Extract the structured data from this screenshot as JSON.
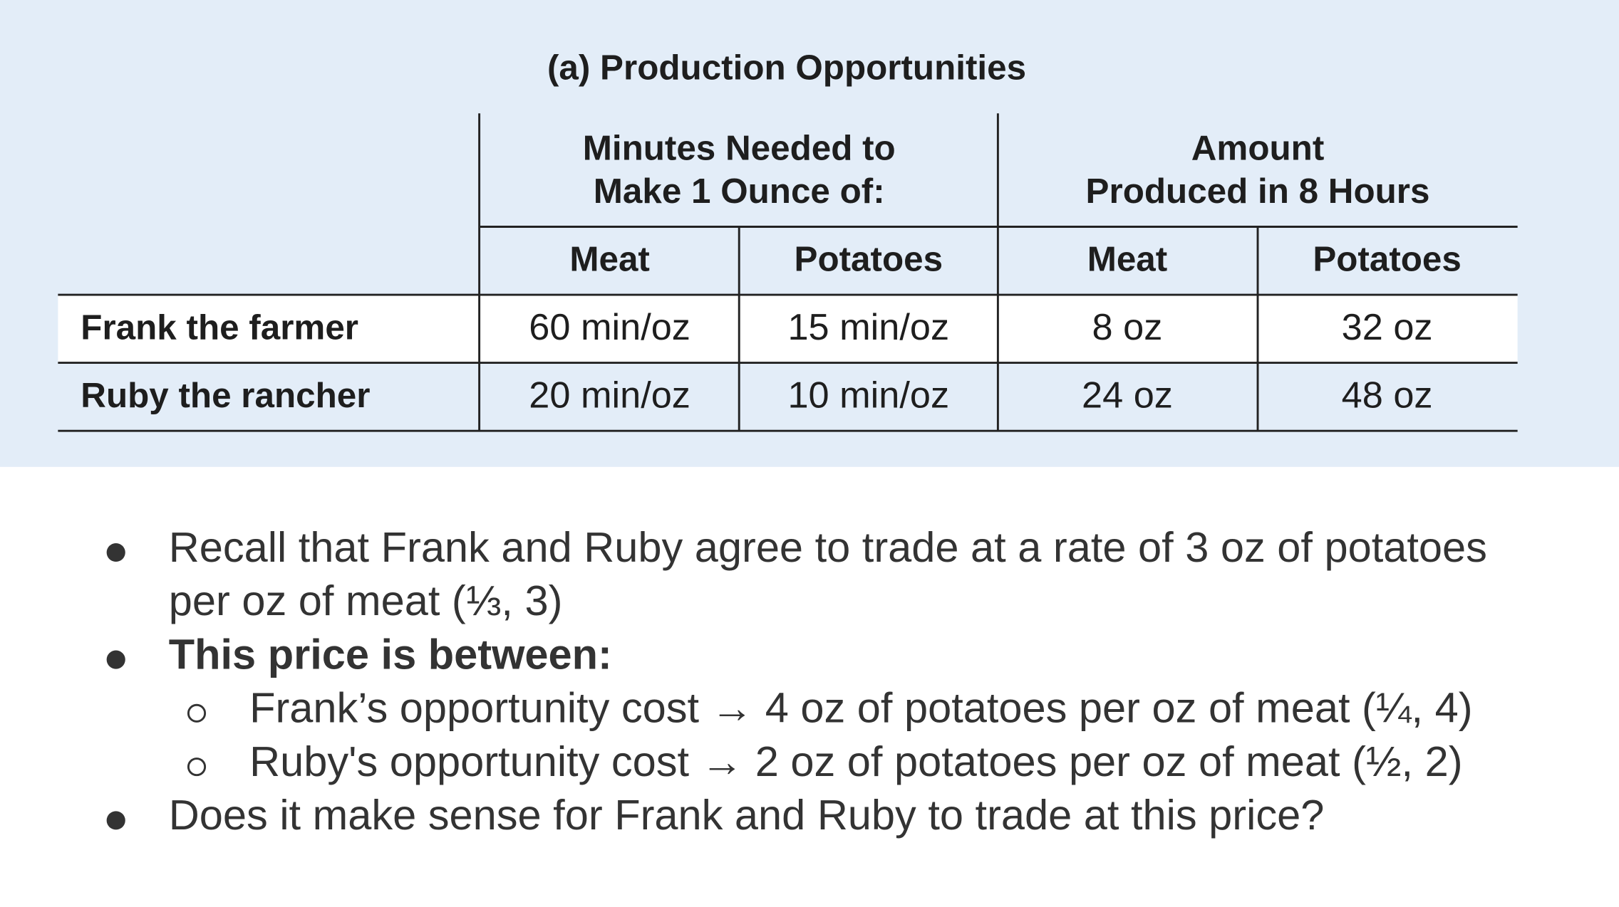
{
  "table": {
    "title": "(a) Production Opportunities",
    "group_headers": [
      [
        "Minutes Needed to",
        "Make 1 Ounce of:"
      ],
      [
        "Amount",
        "Produced in 8 Hours"
      ]
    ],
    "column_headers": [
      "Meat",
      "Potatoes",
      "Meat",
      "Potatoes"
    ],
    "rows": [
      [
        "Frank the farmer",
        "60 min/oz",
        "15 min/oz",
        "8 oz",
        "32 oz"
      ],
      [
        "Ruby the rancher",
        "20 min/oz",
        "10 min/oz",
        "24 oz",
        "48 oz"
      ]
    ]
  },
  "bullets": [
    {
      "lines": [
        "Recall that Frank and Ruby agree to trade at a rate of 3 oz of potatoes",
        "per oz of meat (⅓, 3)"
      ]
    },
    {
      "lines": [
        "This price is between:"
      ],
      "sub": [
        "Frank’s opportunity cost → 4 oz of potatoes per oz of meat (¼, 4)",
        "Ruby's opportunity cost → 2 oz of potatoes per oz of meat (½, 2)"
      ]
    },
    {
      "lines": [
        "Does it make sense for Frank and Ruby to trade at this price?"
      ]
    }
  ]
}
